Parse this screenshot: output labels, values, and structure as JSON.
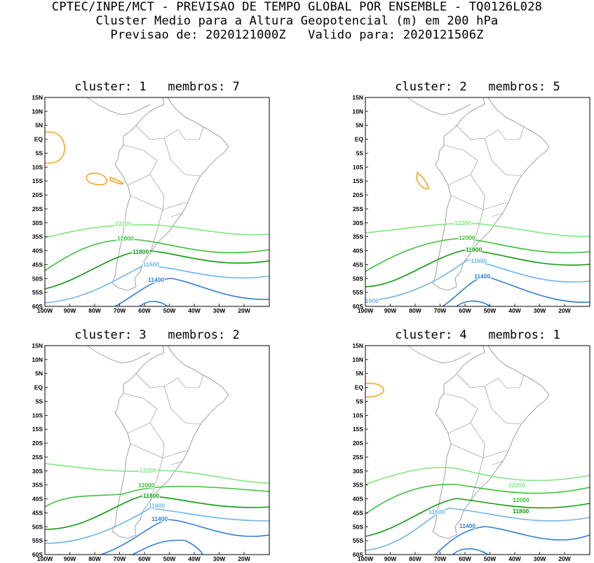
{
  "header": {
    "line1": "CPTEC/INPE/MCT - PREVISAO DE TEMPO GLOBAL POR ENSEMBLE - TQ0126L028",
    "line2": "Cluster Medio para a Altura Geopotencial (m) em 200 hPa",
    "line3": "Previsao de: 2020121000Z   Valido para: 2020121506Z"
  },
  "colors": {
    "c12200": "#7ee87e",
    "c12000": "#3cc03c",
    "c11800": "#109a10",
    "c11600": "#6fb4ee",
    "c11400": "#2f7fd2",
    "c_high": "#f5a623",
    "land": "#888888"
  },
  "axes": {
    "lat_labels": [
      "15N",
      "10N",
      "5N",
      "EQ",
      "5S",
      "10S",
      "15S",
      "20S",
      "25S",
      "30S",
      "35S",
      "40S",
      "45S",
      "50S",
      "55S",
      "60S"
    ],
    "lon_labels": [
      "100W",
      "90W",
      "80W",
      "70W",
      "60W",
      "50W",
      "40W",
      "30W",
      "20W"
    ]
  },
  "panels": [
    {
      "title": "cluster: 1   membros: 7",
      "labels": {
        "l12200": "12200",
        "l12000": "12000",
        "l11800": "11800",
        "l11600": "11600",
        "l11400": "11400"
      }
    },
    {
      "title": "cluster: 2   membros: 5",
      "labels": {
        "l12200": "12200",
        "l12000": "12000",
        "l11800": "11800",
        "l11600": "11600",
        "l11400": "11400",
        "l11600b": "1600"
      }
    },
    {
      "title": "cluster: 3   membros: 2",
      "labels": {
        "l12200": "12200",
        "l12000": "12000",
        "l11800": "11800",
        "l11600": "11600",
        "l11400": "11400"
      }
    },
    {
      "title": "cluster: 4   membros: 1",
      "labels": {
        "l12200": "12200",
        "l12000": "12000",
        "l11800": "11800",
        "l11600": "11600",
        "l11400": "11400"
      }
    }
  ]
}
